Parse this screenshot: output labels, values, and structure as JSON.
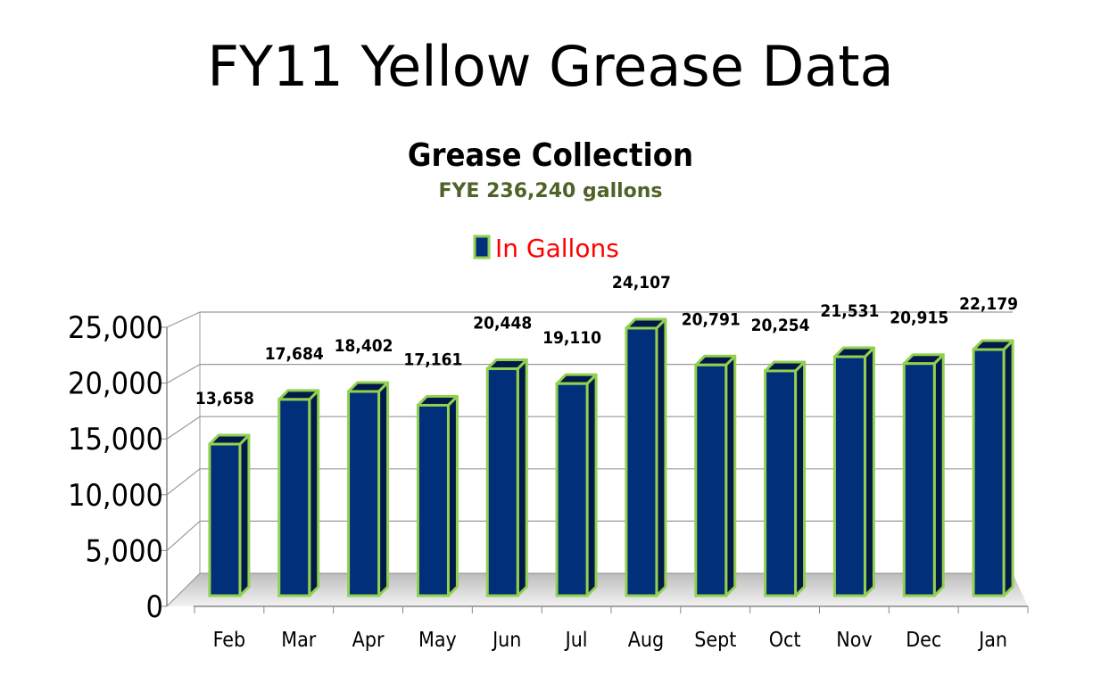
{
  "slide_title": "FY11 Yellow Grease Data",
  "chart_data": {
    "type": "bar",
    "title": "Grease Collection",
    "subtitle": "FYE 236,240 gallons",
    "legend": {
      "label": "In Gallons",
      "placement": "top"
    },
    "categories": [
      "Feb",
      "Mar",
      "Apr",
      "May",
      "Jun",
      "Jul",
      "Aug",
      "Sept",
      "Oct",
      "Nov",
      "Dec",
      "Jan"
    ],
    "series": [
      {
        "name": "In Gallons",
        "values": [
          13658,
          17684,
          18402,
          17161,
          20448,
          19110,
          24107,
          20791,
          20254,
          21531,
          20915,
          22179
        ]
      }
    ],
    "data_labels": [
      "13,658",
      "17,684",
      "18,402",
      "17,161",
      "20,448",
      "19,110",
      "24,107",
      "20,791",
      "20,254",
      "21,531",
      "20,915",
      "22,179"
    ],
    "y_ticks": [
      0,
      5000,
      10000,
      15000,
      20000,
      25000
    ],
    "y_tick_labels": [
      "0",
      "5,000",
      "10,000",
      "15,000",
      "20,000",
      "25,000"
    ],
    "ylim": [
      0,
      25000
    ],
    "grid": true,
    "colors": {
      "bar": "#022f7a",
      "bar_side": "#011a4a",
      "bar_outline": "#92d050",
      "subtitle": "#4f6228",
      "legend_text": "#ff0000"
    }
  }
}
